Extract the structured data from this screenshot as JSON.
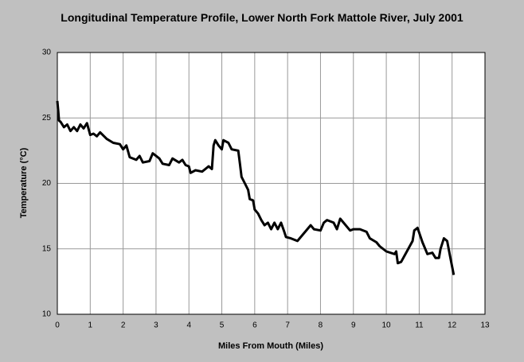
{
  "chart_data": {
    "type": "line",
    "title": "Longitudinal Temperature Profile, Lower North Fork Mattole River, July 2001",
    "x_label": "Miles From Mouth (Miles)",
    "y_label": "Temperature (°C)",
    "xlim": [
      0,
      13
    ],
    "xticks": [
      0,
      1,
      2,
      3,
      4,
      5,
      6,
      7,
      8,
      9,
      10,
      11,
      12,
      13
    ],
    "ylim": [
      10,
      30
    ],
    "yticks": [
      10,
      15,
      20,
      25,
      30
    ],
    "grid": true,
    "series": [
      {
        "color": "#000000",
        "x": [
          0.0,
          0.03,
          0.05,
          0.1,
          0.2,
          0.3,
          0.4,
          0.5,
          0.6,
          0.7,
          0.8,
          0.9,
          1.0,
          1.1,
          1.2,
          1.3,
          1.5,
          1.7,
          1.9,
          2.0,
          2.1,
          2.2,
          2.4,
          2.5,
          2.6,
          2.8,
          2.9,
          3.1,
          3.2,
          3.4,
          3.5,
          3.7,
          3.8,
          3.9,
          4.0,
          4.05,
          4.2,
          4.4,
          4.6,
          4.7,
          4.75,
          4.8,
          4.9,
          5.0,
          5.05,
          5.2,
          5.3,
          5.5,
          5.55,
          5.6,
          5.7,
          5.8,
          5.85,
          5.95,
          6.0,
          6.1,
          6.2,
          6.3,
          6.4,
          6.5,
          6.6,
          6.7,
          6.8,
          6.9,
          6.95,
          7.1,
          7.3,
          7.5,
          7.6,
          7.7,
          7.8,
          8.0,
          8.1,
          8.2,
          8.4,
          8.5,
          8.6,
          8.7,
          8.9,
          9.0,
          9.2,
          9.4,
          9.5,
          9.7,
          9.8,
          10.0,
          10.25,
          10.3,
          10.35,
          10.45,
          10.8,
          10.85,
          10.95,
          11.1,
          11.25,
          11.4,
          11.5,
          11.6,
          11.65,
          11.75,
          11.85,
          11.95,
          12.05
        ],
        "values": [
          26.3,
          25.5,
          24.8,
          24.7,
          24.3,
          24.5,
          24.0,
          24.3,
          24.0,
          24.5,
          24.2,
          24.6,
          23.7,
          23.8,
          23.6,
          23.9,
          23.4,
          23.1,
          23.0,
          22.6,
          22.9,
          22.0,
          21.8,
          22.1,
          21.6,
          21.7,
          22.3,
          21.9,
          21.5,
          21.4,
          21.9,
          21.6,
          21.8,
          21.4,
          21.3,
          20.8,
          21.0,
          20.9,
          21.3,
          21.1,
          22.9,
          23.3,
          22.9,
          22.6,
          23.3,
          23.1,
          22.6,
          22.5,
          21.5,
          20.5,
          20.0,
          19.5,
          18.8,
          18.7,
          18.0,
          17.7,
          17.2,
          16.8,
          17.0,
          16.5,
          17.0,
          16.5,
          17.0,
          16.3,
          15.9,
          15.8,
          15.6,
          16.2,
          16.5,
          16.8,
          16.5,
          16.4,
          17.0,
          17.2,
          17.0,
          16.5,
          17.3,
          17.0,
          16.4,
          16.5,
          16.5,
          16.3,
          15.8,
          15.5,
          15.2,
          14.8,
          14.6,
          14.8,
          13.9,
          14.0,
          15.6,
          16.4,
          16.6,
          15.5,
          14.6,
          14.7,
          14.3,
          14.3,
          15.0,
          15.8,
          15.6,
          14.3,
          13.0
        ]
      }
    ]
  }
}
